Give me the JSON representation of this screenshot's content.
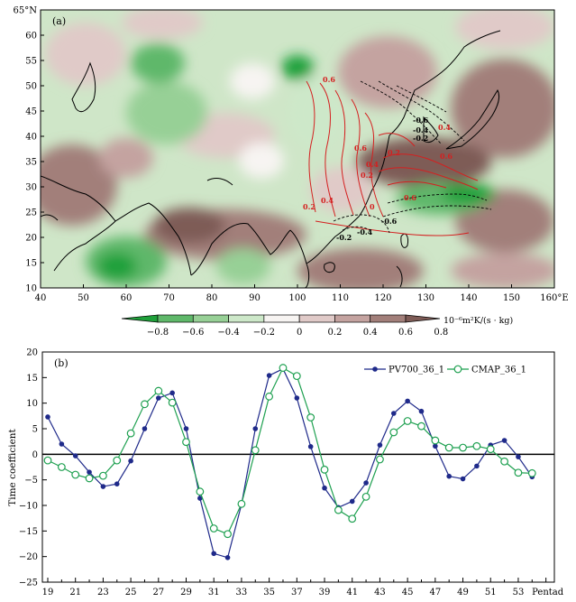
{
  "panel_a": {
    "label": "(a)",
    "x_ticks": [
      "40",
      "50",
      "60",
      "70",
      "80",
      "90",
      "100",
      "110",
      "120",
      "130",
      "140",
      "150",
      "160°E"
    ],
    "y_ticks": [
      "10",
      "15",
      "20",
      "25",
      "30",
      "35",
      "40",
      "45",
      "50",
      "55",
      "60",
      "65°N"
    ],
    "colorbar": {
      "ticks": [
        "-0.8",
        "-0.6",
        "-0.4",
        "-0.2",
        "0",
        "0.2",
        "0.4",
        "0.6",
        "0.8"
      ],
      "unit": "10⁻⁶m²K/(s · kg)",
      "colors": [
        "#1fa03a",
        "#5fb86a",
        "#97d096",
        "#cde8c9",
        "#f7f4f2",
        "#e0cac8",
        "#c4a3a0",
        "#a27f7a",
        "#7e5b56"
      ]
    },
    "contour_labels": [
      "0.6",
      "0.4",
      "0.6",
      "0.2",
      "0.4",
      "0.2",
      "0.2",
      "0.4",
      "0.6",
      "0",
      "0.6",
      "-0.6",
      "-0.4",
      "-0.2",
      "-0.6",
      "-0.4",
      "-0.2"
    ]
  },
  "chart_data": {
    "type": "line",
    "label": "(b)",
    "xlabel": "Pentad",
    "ylabel": "Time coefficient",
    "x": [
      19,
      20,
      21,
      22,
      23,
      24,
      25,
      26,
      27,
      28,
      29,
      30,
      31,
      32,
      33,
      34,
      35,
      36,
      37,
      38,
      39,
      40,
      41,
      42,
      43,
      44,
      45,
      46,
      47,
      48,
      49,
      50,
      51,
      52,
      53,
      54,
      55
    ],
    "x_tick_labels": [
      "19",
      "21",
      "23",
      "25",
      "27",
      "29",
      "31",
      "33",
      "35",
      "37",
      "39",
      "41",
      "43",
      "45",
      "47",
      "49",
      "51",
      "53",
      "Pentad"
    ],
    "ylim": [
      -25,
      20
    ],
    "y_ticks": [
      20,
      15,
      10,
      5,
      0,
      -5,
      -10,
      -15,
      -20,
      -25
    ],
    "series": [
      {
        "name": "PV700_36_1",
        "color": "#1f2a8a",
        "values": [
          7.3,
          2.0,
          -0.3,
          -3.5,
          -6.3,
          -5.8,
          -1.3,
          5.0,
          11.0,
          12.0,
          5.0,
          -8.6,
          -19.4,
          -20.2,
          -9.8,
          5.0,
          15.4,
          16.7,
          11.0,
          1.5,
          -6.6,
          -10.4,
          -9.2,
          -5.6,
          1.8,
          8.0,
          10.4,
          8.4,
          1.6,
          -4.3,
          -4.8,
          -2.3,
          1.8,
          2.7,
          -0.5,
          -4.4,
          null
        ]
      },
      {
        "name": "CMAP_36_1",
        "color": "#1ea050",
        "values": [
          -1.2,
          -2.5,
          -4.0,
          -4.7,
          -4.2,
          -1.2,
          4.1,
          9.8,
          12.4,
          10.1,
          2.4,
          -7.3,
          -14.5,
          -15.6,
          -9.7,
          0.8,
          11.3,
          16.9,
          15.3,
          7.2,
          -3.0,
          -10.9,
          -12.6,
          -8.3,
          -1.0,
          4.3,
          6.5,
          5.5,
          2.7,
          1.3,
          1.3,
          1.6,
          1.0,
          -1.4,
          -3.6,
          -3.7,
          null
        ]
      }
    ],
    "legend_position": "top-right"
  }
}
